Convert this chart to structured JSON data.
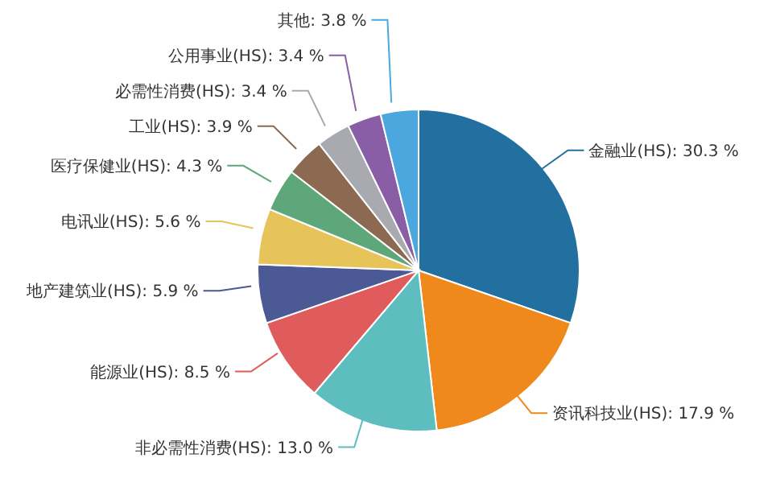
{
  "chart_data": {
    "type": "pie",
    "categories": [
      "金融业(HS)",
      "资讯科技业(HS)",
      "非必需性消费(HS)",
      "能源业(HS)",
      "地产建筑业(HS)",
      "电讯业(HS)",
      "医疗保健业(HS)",
      "工业(HS)",
      "必需性消费(HS)",
      "公用事业(HS)",
      "其他"
    ],
    "values": [
      30.3,
      17.9,
      13.0,
      8.5,
      5.9,
      5.6,
      4.3,
      3.9,
      3.4,
      3.4,
      3.8
    ],
    "value_labels": [
      "30.3 %",
      "17.9 %",
      "13.0 %",
      "8.5 %",
      "5.9 %",
      "5.6 %",
      "4.3 %",
      "3.9 %",
      "3.4 %",
      "3.4 %",
      "3.8 %"
    ],
    "colors": [
      "#22709f",
      "#f0891c",
      "#5dbdbf",
      "#e05b5b",
      "#4b5995",
      "#e6c45a",
      "#5ea77b",
      "#8c6a52",
      "#a8aab0",
      "#8a5ea6",
      "#4aa8df"
    ]
  }
}
